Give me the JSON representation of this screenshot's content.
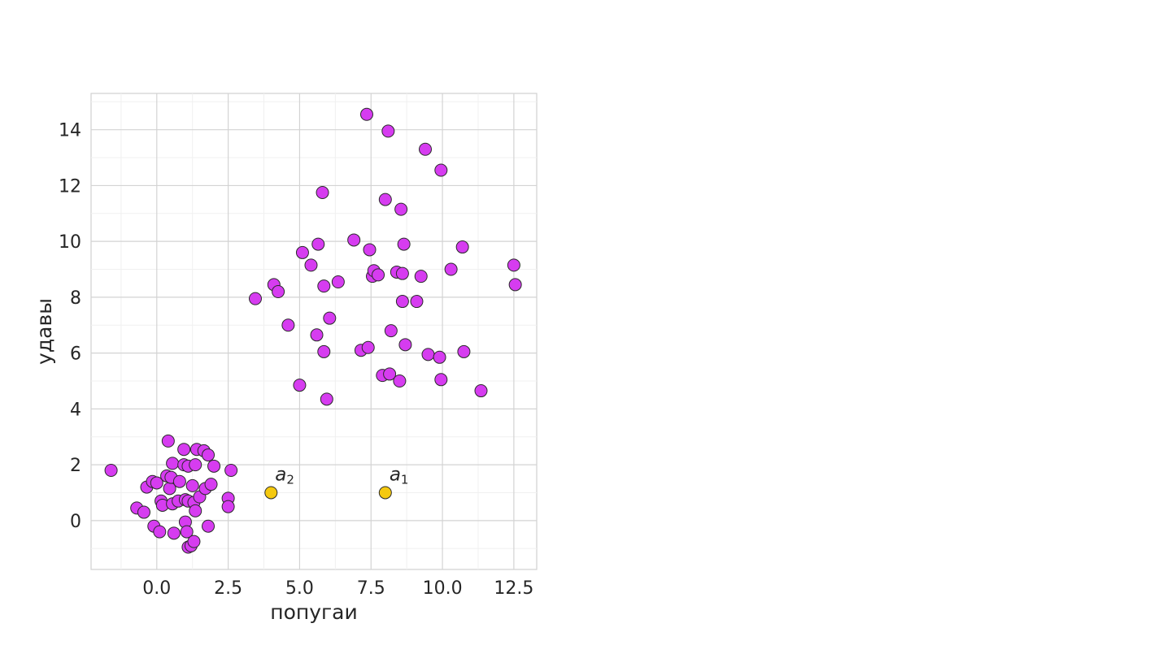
{
  "chart_data": {
    "type": "scatter",
    "xlabel": "попугаи",
    "ylabel": "удавы",
    "xlim": [
      -2.3,
      13.3
    ],
    "ylim": [
      -1.75,
      15.3
    ],
    "x_ticks": [
      0.0,
      2.5,
      5.0,
      7.5,
      10.0,
      12.5
    ],
    "x_tick_labels": [
      "0.0",
      "2.5",
      "5.0",
      "7.5",
      "10.0",
      "12.5"
    ],
    "y_ticks": [
      0,
      2,
      4,
      6,
      8,
      10,
      12,
      14
    ],
    "y_tick_labels": [
      "0",
      "2",
      "4",
      "6",
      "8",
      "10",
      "12",
      "14"
    ],
    "grid": true,
    "series": [
      {
        "color": "#d63cf0",
        "points": [
          [
            -1.6,
            1.8
          ],
          [
            -0.7,
            0.45
          ],
          [
            -0.45,
            0.3
          ],
          [
            -0.35,
            1.2
          ],
          [
            -0.15,
            1.4
          ],
          [
            0.0,
            1.35
          ],
          [
            -0.1,
            -0.2
          ],
          [
            0.1,
            -0.4
          ],
          [
            0.15,
            0.7
          ],
          [
            0.2,
            0.55
          ],
          [
            0.35,
            1.6
          ],
          [
            0.4,
            2.85
          ],
          [
            0.45,
            1.15
          ],
          [
            0.5,
            1.55
          ],
          [
            0.55,
            0.6
          ],
          [
            0.55,
            2.05
          ],
          [
            0.6,
            -0.45
          ],
          [
            0.75,
            0.7
          ],
          [
            0.8,
            1.4
          ],
          [
            0.95,
            2.55
          ],
          [
            0.95,
            2.0
          ],
          [
            1.0,
            0.75
          ],
          [
            1.0,
            -0.05
          ],
          [
            1.05,
            -0.4
          ],
          [
            1.1,
            0.7
          ],
          [
            1.1,
            1.95
          ],
          [
            1.1,
            -0.95
          ],
          [
            1.2,
            -0.9
          ],
          [
            1.25,
            1.25
          ],
          [
            1.3,
            0.65
          ],
          [
            1.3,
            -0.75
          ],
          [
            1.35,
            0.35
          ],
          [
            1.35,
            2.0
          ],
          [
            1.4,
            2.55
          ],
          [
            1.5,
            0.85
          ],
          [
            1.65,
            2.5
          ],
          [
            1.7,
            1.15
          ],
          [
            1.8,
            2.35
          ],
          [
            1.8,
            -0.2
          ],
          [
            1.9,
            1.3
          ],
          [
            2.0,
            1.95
          ],
          [
            2.5,
            0.8
          ],
          [
            2.5,
            0.5
          ],
          [
            2.6,
            1.8
          ],
          [
            3.45,
            7.95
          ],
          [
            4.1,
            8.45
          ],
          [
            4.25,
            8.2
          ],
          [
            4.6,
            7.0
          ],
          [
            5.0,
            4.85
          ],
          [
            5.1,
            9.6
          ],
          [
            5.4,
            9.15
          ],
          [
            5.6,
            6.65
          ],
          [
            5.65,
            9.9
          ],
          [
            5.8,
            11.75
          ],
          [
            5.85,
            6.05
          ],
          [
            5.85,
            8.4
          ],
          [
            5.95,
            4.35
          ],
          [
            6.05,
            7.25
          ],
          [
            6.35,
            8.55
          ],
          [
            6.9,
            10.05
          ],
          [
            7.15,
            6.1
          ],
          [
            7.35,
            14.55
          ],
          [
            7.4,
            6.2
          ],
          [
            7.45,
            9.7
          ],
          [
            7.55,
            8.75
          ],
          [
            7.6,
            8.95
          ],
          [
            7.75,
            8.8
          ],
          [
            7.9,
            5.2
          ],
          [
            8.0,
            11.5
          ],
          [
            8.1,
            13.95
          ],
          [
            8.15,
            5.25
          ],
          [
            8.2,
            6.8
          ],
          [
            8.4,
            8.9
          ],
          [
            8.5,
            5.0
          ],
          [
            8.55,
            11.15
          ],
          [
            8.6,
            8.85
          ],
          [
            8.6,
            7.85
          ],
          [
            8.65,
            9.9
          ],
          [
            8.7,
            6.3
          ],
          [
            9.1,
            7.85
          ],
          [
            9.25,
            8.75
          ],
          [
            9.4,
            13.3
          ],
          [
            9.5,
            5.95
          ],
          [
            9.9,
            5.85
          ],
          [
            9.95,
            5.05
          ],
          [
            9.95,
            12.55
          ],
          [
            10.3,
            9.0
          ],
          [
            10.7,
            9.8
          ],
          [
            10.75,
            6.05
          ],
          [
            11.35,
            4.65
          ],
          [
            12.5,
            9.15
          ],
          [
            12.55,
            8.45
          ]
        ]
      },
      {
        "color": "#f5c90f",
        "points": [
          [
            8.0,
            1.0
          ],
          [
            4.0,
            1.0
          ]
        ]
      }
    ],
    "annotations": [
      {
        "text": "a",
        "subscript": "1",
        "x": 8.0,
        "y": 1.0
      },
      {
        "text": "a",
        "subscript": "2",
        "x": 4.0,
        "y": 1.0
      }
    ]
  }
}
